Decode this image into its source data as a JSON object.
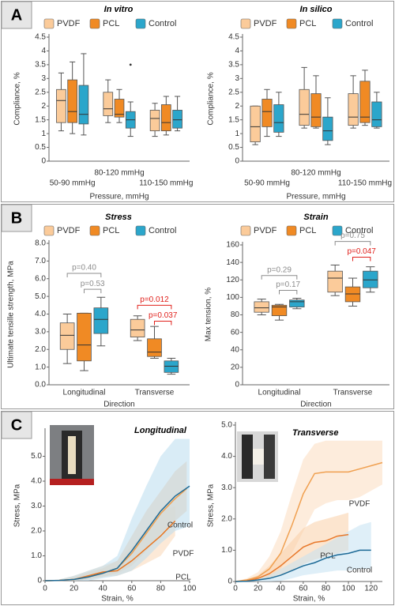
{
  "panel_labels": [
    "A",
    "B",
    "C"
  ],
  "chart_data": [
    {
      "type": "box",
      "title": "In vitro",
      "x_label": "Pressure, mmHg",
      "y_label": "Compliance, %",
      "categories": [
        "50-90 mmHg",
        "80-120 mmHg",
        "110-150 mmHg"
      ],
      "ylim": [
        0,
        4.5
      ],
      "yticks": [
        0,
        0.5,
        1,
        1.5,
        2,
        2.5,
        3,
        3.5,
        4,
        4.5
      ],
      "grid": false,
      "series": [
        {
          "name": "PVDF",
          "color": "#fbcb9a",
          "values": [
            {
              "min": 1.1,
              "q1": 1.4,
              "median": 2.2,
              "q3": 2.6,
              "max": 3.2
            },
            {
              "min": 1.4,
              "q1": 1.65,
              "median": 1.9,
              "q3": 2.5,
              "max": 2.95
            },
            {
              "min": 0.9,
              "q1": 1.1,
              "median": 1.55,
              "q3": 1.85,
              "max": 2.1
            }
          ]
        },
        {
          "name": "PCL",
          "color": "#f08a24",
          "values": [
            {
              "min": 1.0,
              "q1": 1.4,
              "median": 1.8,
              "q3": 2.95,
              "max": 3.6
            },
            {
              "min": 1.4,
              "q1": 1.6,
              "median": 1.7,
              "q3": 2.25,
              "max": 2.6
            },
            {
              "min": 0.95,
              "q1": 1.1,
              "median": 1.4,
              "q3": 2.05,
              "max": 2.35
            }
          ]
        },
        {
          "name": "Control",
          "color": "#2ba6cb",
          "values": [
            {
              "min": 0.95,
              "q1": 1.35,
              "median": 1.7,
              "q3": 2.75,
              "max": 3.9
            },
            {
              "min": 0.9,
              "q1": 1.2,
              "median": 1.5,
              "q3": 1.8,
              "max": 2.15,
              "outliers": [
                3.5
              ]
            },
            {
              "min": 1.1,
              "q1": 1.2,
              "median": 1.5,
              "q3": 1.85,
              "max": 2.35
            }
          ]
        }
      ]
    },
    {
      "type": "box",
      "title": "In silico",
      "x_label": "Pressure, mmHg",
      "y_label": "Compliance, %",
      "categories": [
        "50-90 mmHg",
        "80-120 mmHg",
        "110-150 mmHg"
      ],
      "ylim": [
        0,
        4.5
      ],
      "yticks": [
        0,
        0.5,
        1,
        1.5,
        2,
        2.5,
        3,
        3.5,
        4,
        4.5
      ],
      "grid": false,
      "series": [
        {
          "name": "PVDF",
          "color": "#fbcb9a",
          "values": [
            {
              "min": 0.6,
              "q1": 0.7,
              "median": 1.25,
              "q3": 2.0,
              "max": 2.0
            },
            {
              "min": 1.2,
              "q1": 1.3,
              "median": 1.7,
              "q3": 2.6,
              "max": 3.4
            },
            {
              "min": 1.2,
              "q1": 1.3,
              "median": 1.6,
              "q3": 2.45,
              "max": 3.1
            }
          ]
        },
        {
          "name": "PCL",
          "color": "#f08a24",
          "values": [
            {
              "min": 0.9,
              "q1": 1.25,
              "median": 1.8,
              "q3": 2.25,
              "max": 2.6
            },
            {
              "min": 1.2,
              "q1": 1.25,
              "median": 1.6,
              "q3": 2.45,
              "max": 3.1
            },
            {
              "min": 1.3,
              "q1": 1.4,
              "median": 1.6,
              "q3": 2.9,
              "max": 3.3
            }
          ]
        },
        {
          "name": "Control",
          "color": "#2ba6cb",
          "values": [
            {
              "min": 0.9,
              "q1": 1.05,
              "median": 1.4,
              "q3": 2.05,
              "max": 2.5
            },
            {
              "min": 0.6,
              "q1": 0.75,
              "median": 1.1,
              "q3": 1.6,
              "max": 2.3
            },
            {
              "min": 1.2,
              "q1": 1.25,
              "median": 1.5,
              "q3": 2.15,
              "max": 2.5
            }
          ]
        }
      ]
    },
    {
      "type": "box",
      "title": "Stress",
      "x_label": "Direction",
      "y_label": "Ultimate tensille strength, MPa",
      "categories": [
        "Longitudinal",
        "Transverse"
      ],
      "ylim": [
        0,
        8
      ],
      "yticks": [
        {
          "value": 0,
          "label": "0.0"
        },
        {
          "value": 1,
          "label": "1.0"
        },
        {
          "value": 2,
          "label": "2.0"
        },
        {
          "value": 3,
          "label": "3.0"
        },
        {
          "value": 4,
          "label": "4.0"
        },
        {
          "value": 5,
          "label": "5.0"
        },
        {
          "value": 6,
          "label": "6.0"
        },
        {
          "value": 7,
          "label": "7.0"
        },
        {
          "value": 8,
          "label": "8.0"
        }
      ],
      "grid": false,
      "annotations": [
        {
          "text": "p=0.40",
          "color": "#8c8c8c"
        },
        {
          "text": "p=0.53",
          "color": "#8c8c8c"
        },
        {
          "text": "p=0.012",
          "color": "#e0201b"
        },
        {
          "text": "p=0.037",
          "color": "#e0201b"
        }
      ],
      "series": [
        {
          "name": "PVDF",
          "color": "#fbcb9a",
          "values": [
            {
              "min": 1.2,
              "q1": 2.0,
              "median": 2.8,
              "q3": 3.5,
              "max": 4.0
            },
            {
              "min": 2.5,
              "q1": 2.7,
              "median": 3.1,
              "q3": 3.7,
              "max": 3.9
            }
          ]
        },
        {
          "name": "PCL",
          "color": "#f08a24",
          "values": [
            {
              "min": 0.8,
              "q1": 1.35,
              "median": 2.25,
              "q3": 4.05,
              "max": 4.05
            },
            {
              "min": 1.5,
              "q1": 1.6,
              "median": 1.85,
              "q3": 2.6,
              "max": 3.3
            }
          ]
        },
        {
          "name": "Control",
          "color": "#2ba6cb",
          "values": [
            {
              "min": 2.2,
              "q1": 2.9,
              "median": 3.7,
              "q3": 4.35,
              "max": 4.95
            },
            {
              "min": 0.6,
              "q1": 0.7,
              "median": 1.05,
              "q3": 1.35,
              "max": 1.5
            }
          ]
        }
      ]
    },
    {
      "type": "box",
      "title": "Strain",
      "x_label": "Direction",
      "y_label": "Max tension, %",
      "categories": [
        "Longitudinal",
        "Transverse"
      ],
      "ylim": [
        0,
        160
      ],
      "yticks": [
        0,
        20,
        40,
        60,
        80,
        100,
        120,
        140,
        160
      ],
      "grid": false,
      "annotations": [
        {
          "text": "p=0.29",
          "color": "#8c8c8c"
        },
        {
          "text": "p=0.17",
          "color": "#8c8c8c"
        },
        {
          "text": "p=0.75",
          "color": "#8c8c8c"
        },
        {
          "text": "p=0.047",
          "color": "#e0201b"
        }
      ],
      "series": [
        {
          "name": "PVDF",
          "color": "#fbcb9a",
          "values": [
            {
              "min": 80,
              "q1": 83,
              "median": 88,
              "q3": 95,
              "max": 98
            },
            {
              "min": 102,
              "q1": 106,
              "median": 122,
              "q3": 130,
              "max": 137
            }
          ]
        },
        {
          "name": "PCL",
          "color": "#f08a24",
          "values": [
            {
              "min": 74,
              "q1": 79,
              "median": 89,
              "q3": 91,
              "max": 92
            },
            {
              "min": 90,
              "q1": 95,
              "median": 104,
              "q3": 112,
              "max": 122
            }
          ]
        },
        {
          "name": "Control",
          "color": "#2ba6cb",
          "values": [
            {
              "min": 87,
              "q1": 89,
              "median": 95,
              "q3": 97,
              "max": 99
            },
            {
              "min": 106,
              "q1": 111,
              "median": 120,
              "q3": 130,
              "max": 135
            }
          ]
        }
      ]
    },
    {
      "type": "line",
      "title": "Longitudinal",
      "x_label": "Strain, %",
      "y_label": "Stress, MPa",
      "xlim": [
        0,
        100
      ],
      "xticks": [
        0,
        20,
        40,
        60,
        80,
        100
      ],
      "ylim": [
        0,
        6
      ],
      "yticks": [
        0,
        {
          "value": 1,
          "label": "1.0"
        },
        {
          "value": 2,
          "label": "2.0"
        },
        {
          "value": 3,
          "label": "3.0"
        },
        {
          "value": 4,
          "label": "4.0"
        },
        {
          "value": 5,
          "label": "5.0"
        }
      ],
      "grid": false,
      "series": [
        {
          "name": "PVDF",
          "color": "#f0a050",
          "band_color": "#f6c9a0",
          "x": [
            0,
            10,
            20,
            30,
            40,
            50,
            60,
            70,
            80,
            90,
            98
          ],
          "values": [
            0,
            0.01,
            0.05,
            0.15,
            0.3,
            0.5,
            1.1,
            1.9,
            2.7,
            3.3,
            3.7
          ],
          "upper": [
            0,
            0.05,
            0.15,
            0.35,
            0.5,
            0.8,
            1.8,
            2.8,
            3.6,
            4.4,
            4.8
          ],
          "lower": [
            0,
            0,
            0,
            0.05,
            0.15,
            0.3,
            0.6,
            1.2,
            1.9,
            2.4,
            2.8
          ]
        },
        {
          "name": "PCL",
          "color": "#e87722",
          "band_color": "#f9d7b6",
          "x": [
            0,
            10,
            20,
            30,
            40,
            50,
            60,
            70,
            80,
            90
          ],
          "values": [
            0,
            0.01,
            0.05,
            0.2,
            0.35,
            0.4,
            0.8,
            1.3,
            1.8,
            2.4
          ],
          "upper": [
            0,
            0.05,
            0.2,
            0.4,
            0.6,
            0.8,
            1.4,
            2.0,
            2.8,
            3.0
          ],
          "lower": [
            0,
            0,
            0,
            0.05,
            0.15,
            0.2,
            0.4,
            0.7,
            1.0,
            1.8
          ]
        },
        {
          "name": "Control",
          "color": "#1d6a96",
          "band_color": "#b9dcee",
          "x": [
            0,
            10,
            20,
            30,
            40,
            50,
            60,
            70,
            80,
            90,
            100
          ],
          "values": [
            0,
            0.01,
            0.05,
            0.15,
            0.3,
            0.5,
            1.2,
            2.0,
            2.8,
            3.4,
            3.8
          ],
          "upper": [
            0,
            0.05,
            0.2,
            0.4,
            0.6,
            1.0,
            2.5,
            3.8,
            5.0,
            5.7,
            5.7
          ],
          "lower": [
            0,
            0,
            0,
            0,
            0.1,
            0.2,
            0.4,
            0.9,
            1.5,
            2.0,
            2.2
          ]
        }
      ]
    },
    {
      "type": "line",
      "title": "Transverse",
      "x_label": "Strain, %",
      "y_label": "Stress, MPa",
      "xlim": [
        0,
        130
      ],
      "xticks": [
        0,
        20,
        40,
        60,
        80,
        100,
        120
      ],
      "ylim": [
        0,
        5
      ],
      "yticks": [
        0,
        {
          "value": 1,
          "label": "1.0"
        },
        {
          "value": 2,
          "label": "2.0"
        },
        {
          "value": 3,
          "label": "3.0"
        },
        {
          "value": 4,
          "label": "4.0"
        },
        {
          "value": 5,
          "label": "5.0"
        }
      ],
      "grid": false,
      "series": [
        {
          "name": "PVDF",
          "color": "#f0a050",
          "band_color": "#fbdcc0",
          "x": [
            0,
            10,
            20,
            30,
            40,
            50,
            60,
            70,
            80,
            90,
            100,
            110,
            120,
            130
          ],
          "values": [
            0,
            0.05,
            0.15,
            0.4,
            0.9,
            1.8,
            2.8,
            3.45,
            3.5,
            3.5,
            3.5,
            3.6,
            3.7,
            3.8
          ],
          "upper": [
            0,
            0.1,
            0.3,
            0.8,
            1.6,
            2.8,
            3.9,
            4.4,
            4.5,
            4.5,
            4.5,
            4.5,
            4.5,
            4.5
          ],
          "lower": [
            0,
            0,
            0.05,
            0.15,
            0.4,
            0.9,
            1.6,
            2.3,
            2.5,
            2.6,
            2.6,
            2.7,
            2.9,
            3.1
          ]
        },
        {
          "name": "PCL",
          "color": "#e8782a",
          "band_color": "#f9d0a8",
          "x": [
            0,
            10,
            20,
            30,
            40,
            50,
            60,
            70,
            80,
            90,
            100
          ],
          "values": [
            0,
            0.02,
            0.1,
            0.25,
            0.5,
            0.8,
            1.1,
            1.25,
            1.3,
            1.45,
            1.5
          ],
          "upper": [
            0,
            0.05,
            0.2,
            0.5,
            0.9,
            1.3,
            1.7,
            1.9,
            2.0,
            2.1,
            2.2
          ],
          "lower": [
            0,
            0,
            0.02,
            0.1,
            0.2,
            0.35,
            0.55,
            0.7,
            0.8,
            0.9,
            1.0
          ]
        },
        {
          "name": "Control",
          "color": "#1d6a96",
          "band_color": "#c4e2f2",
          "x": [
            0,
            10,
            20,
            30,
            40,
            50,
            60,
            70,
            80,
            90,
            100,
            110,
            120
          ],
          "values": [
            0,
            0.01,
            0.05,
            0.1,
            0.2,
            0.35,
            0.5,
            0.6,
            0.75,
            0.85,
            0.9,
            1.0,
            1.0
          ],
          "upper": [
            0,
            0.02,
            0.1,
            0.2,
            0.4,
            0.6,
            0.8,
            1.0,
            1.2,
            1.4,
            1.6,
            1.8,
            1.9
          ],
          "lower": [
            0,
            0,
            0,
            0,
            0.02,
            0.1,
            0.2,
            0.25,
            0.3,
            0.35,
            0.35,
            0.4,
            0.4
          ]
        }
      ]
    }
  ]
}
